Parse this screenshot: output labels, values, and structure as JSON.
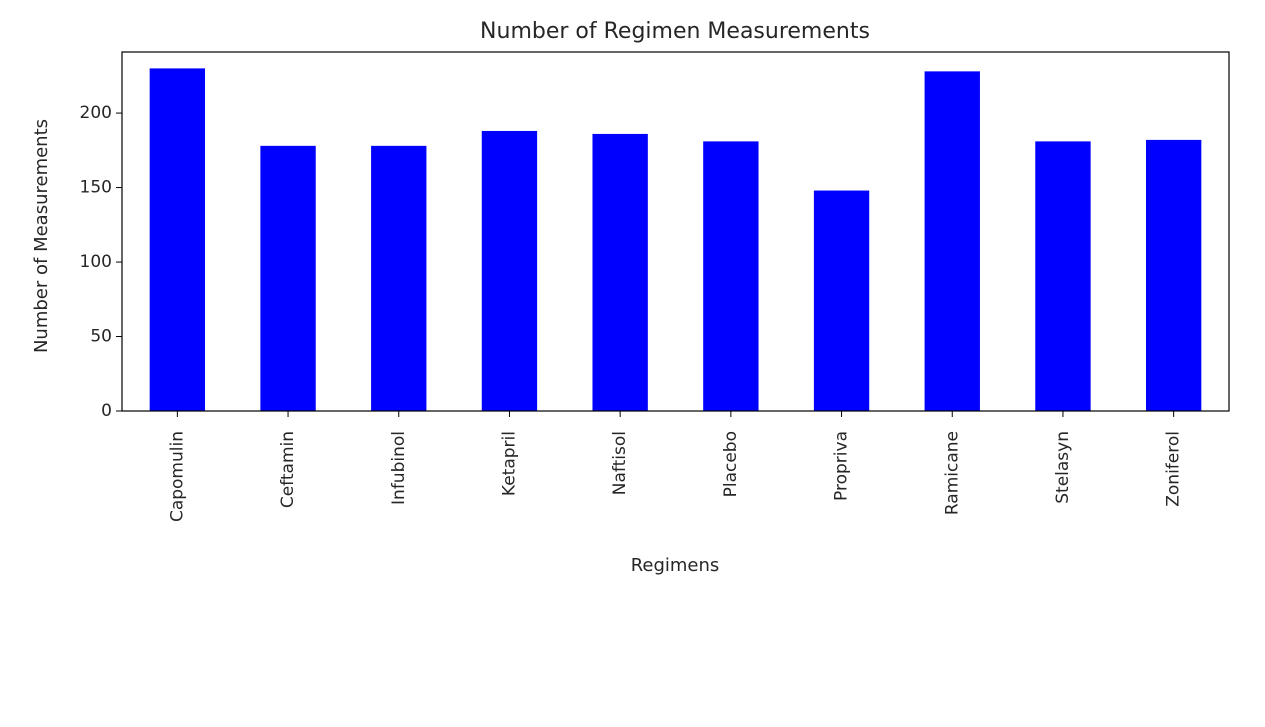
{
  "chart_data": {
    "type": "bar",
    "title": "Number of Regimen Measurements",
    "xlabel": "Regimens",
    "ylabel": "Number of Measurements",
    "categories": [
      "Capomulin",
      "Ceftamin",
      "Infubinol",
      "Ketapril",
      "Naftisol",
      "Placebo",
      "Propriva",
      "Ramicane",
      "Stelasyn",
      "Zoniferol"
    ],
    "values": [
      230,
      178,
      178,
      188,
      186,
      181,
      148,
      228,
      181,
      182
    ],
    "ylim": [
      0,
      241
    ],
    "yticks": [
      0,
      50,
      100,
      150,
      200
    ],
    "bar_color": "#0000ff",
    "grid": false,
    "legend": "none"
  }
}
